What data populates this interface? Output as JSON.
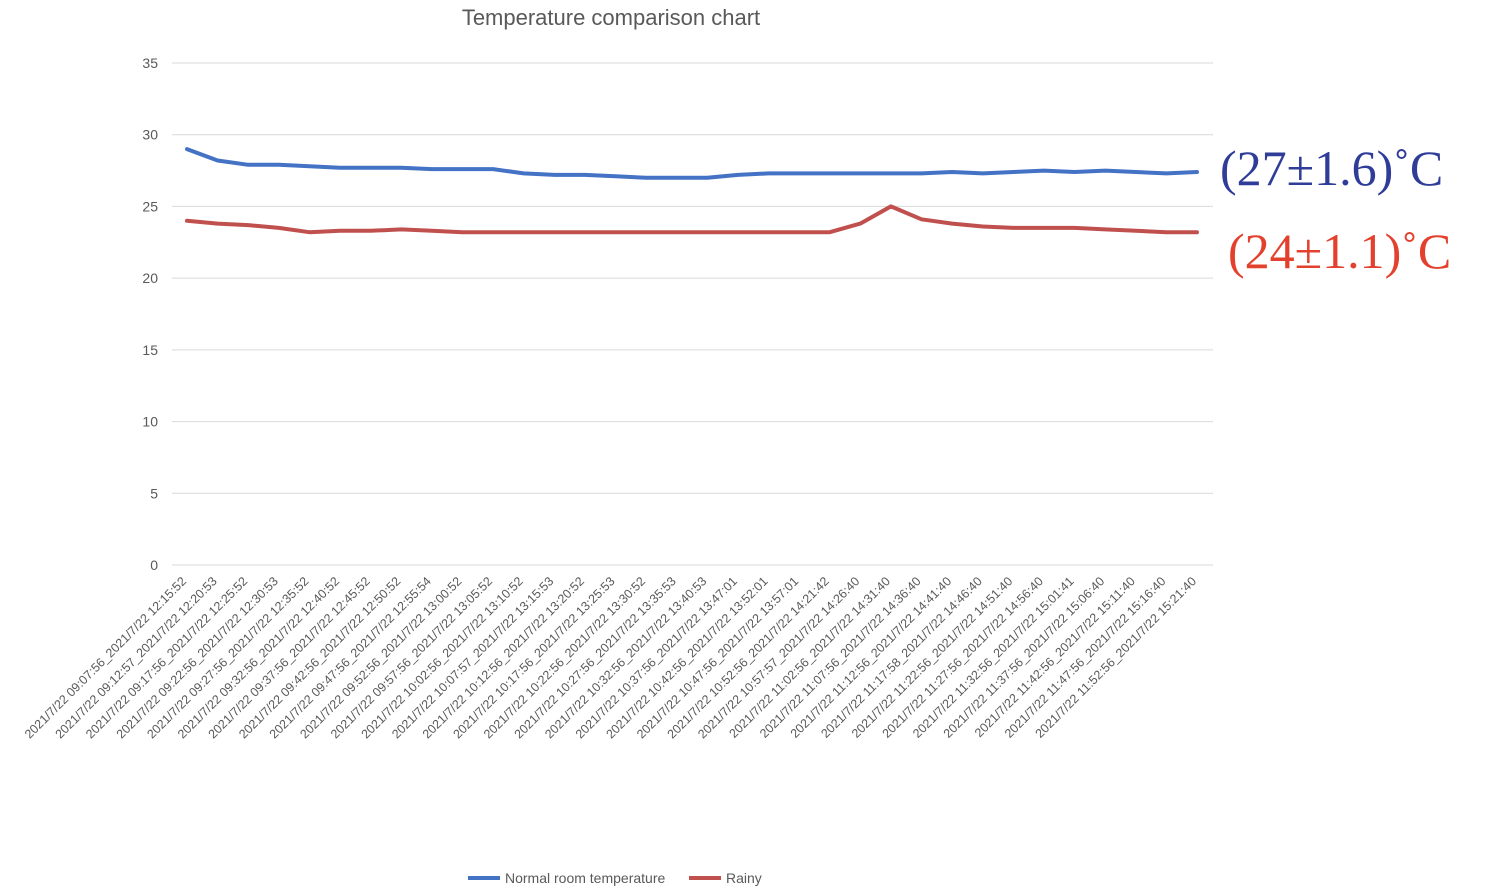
{
  "chart_data": {
    "type": "line",
    "title": "Temperature comparison chart",
    "xlabel": "",
    "ylabel": "",
    "ylim": [
      0,
      35
    ],
    "yticks": [
      0,
      5,
      10,
      15,
      20,
      25,
      30,
      35
    ],
    "grid": true,
    "legend_position": "bottom",
    "categories": [
      "2021/7/22 09:07:56_2021/7/22 12:15:52",
      "2021/7/22 09:12:57_2021/7/22 12:20:53",
      "2021/7/22 09:17:56_2021/7/22 12:25:52",
      "2021/7/22 09:22:56_2021/7/22 12:30:53",
      "2021/7/22 09:27:56_2021/7/22 12:35:52",
      "2021/7/22 09:32:56_2021/7/22 12:40:52",
      "2021/7/22 09:37:56_2021/7/22 12:45:52",
      "2021/7/22 09:42:56_2021/7/22 12:50:52",
      "2021/7/22 09:47:56_2021/7/22 12:55:54",
      "2021/7/22 09:52:56_2021/7/22 13:00:52",
      "2021/7/22 09:57:56_2021/7/22 13:05:52",
      "2021/7/22 10:02:56_2021/7/22 13:10:52",
      "2021/7/22 10:07:57_2021/7/22 13:15:53",
      "2021/7/22 10:12:56_2021/7/22 13:20:52",
      "2021/7/22 10:17:56_2021/7/22 13:25:53",
      "2021/7/22 10:22:56_2021/7/22 13:30:52",
      "2021/7/22 10:27:56_2021/7/22 13:35:53",
      "2021/7/22 10:32:56_2021/7/22 13:40:53",
      "2021/7/22 10:37:56_2021/7/22 13:47:01",
      "2021/7/22 10:42:56_2021/7/22 13:52:01",
      "2021/7/22 10:47:56_2021/7/22 13:57:01",
      "2021/7/22 10:52:56_2021/7/22 14:21:42",
      "2021/7/22 10:57:57_2021/7/22 14:26:40",
      "2021/7/22 11:02:56_2021/7/22 14:31:40",
      "2021/7/22 11:07:56_2021/7/22 14:36:40",
      "2021/7/22 11:12:56_2021/7/22 14:41:40",
      "2021/7/22 11:17:58_2021/7/22 14:46:40",
      "2021/7/22 11:22:56_2021/7/22 14:51:40",
      "2021/7/22 11:27:56_2021/7/22 14:56:40",
      "2021/7/22 11:32:56_2021/7/22 15:01:41",
      "2021/7/22 11:37:56_2021/7/22 15:06:40",
      "2021/7/22 11:42:56_2021/7/22 15:11:40",
      "2021/7/22 11:47:56_2021/7/22 15:16:40",
      "2021/7/22 11:52:56_2021/7/22 15:21:40"
    ],
    "series": [
      {
        "name": "Normal room temperature",
        "color": "#4472c4",
        "values": [
          29.0,
          28.2,
          27.9,
          27.9,
          27.8,
          27.7,
          27.7,
          27.7,
          27.6,
          27.6,
          27.6,
          27.3,
          27.2,
          27.2,
          27.1,
          27.0,
          27.0,
          27.0,
          27.2,
          27.3,
          27.3,
          27.3,
          27.3,
          27.3,
          27.3,
          27.4,
          27.3,
          27.4,
          27.5,
          27.4,
          27.5,
          27.4,
          27.3,
          27.4
        ]
      },
      {
        "name": "Rainy",
        "color": "#c0504d",
        "values": [
          24.0,
          23.8,
          23.7,
          23.5,
          23.2,
          23.3,
          23.3,
          23.4,
          23.3,
          23.2,
          23.2,
          23.2,
          23.2,
          23.2,
          23.2,
          23.2,
          23.2,
          23.2,
          23.2,
          23.2,
          23.2,
          23.2,
          23.8,
          25.0,
          24.1,
          23.8,
          23.6,
          23.5,
          23.5,
          23.5,
          23.4,
          23.3,
          23.2,
          23.2
        ]
      }
    ],
    "annotations": [
      {
        "text": "(27±1.6)˚C",
        "color": "#2f3d99"
      },
      {
        "text": "(24±1.1)˚C",
        "color": "#e3412e"
      }
    ]
  }
}
